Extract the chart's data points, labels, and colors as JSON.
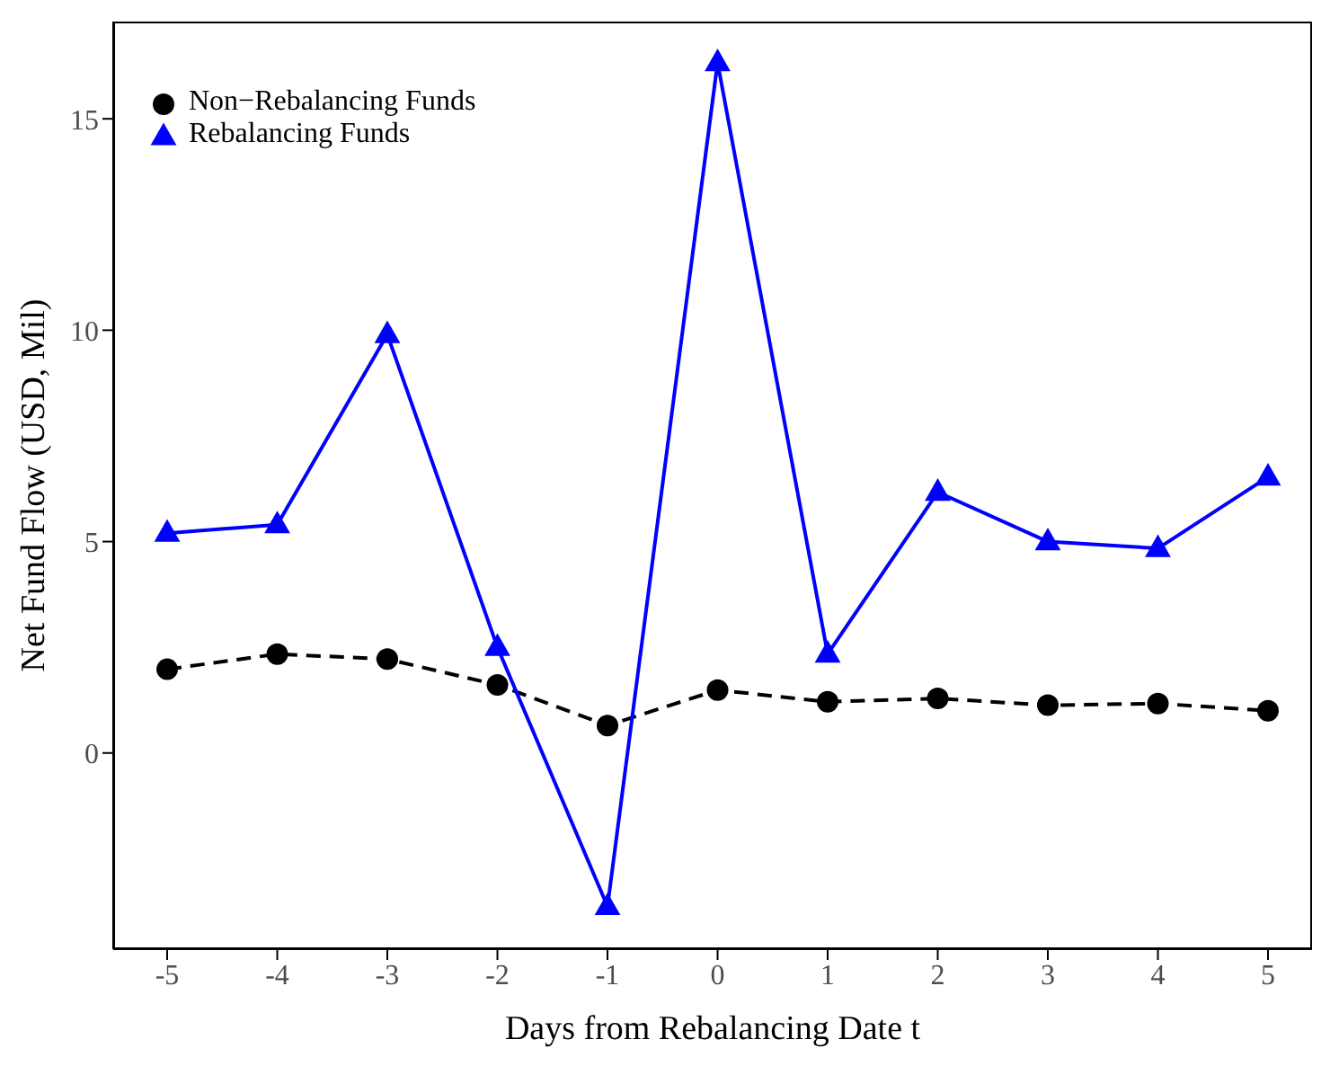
{
  "chart_data": {
    "type": "line",
    "xlabel": "Days from Rebalancing Date t",
    "ylabel": "Net Fund Flow (USD, Mil)",
    "x": [
      -5,
      -4,
      -3,
      -2,
      -1,
      0,
      1,
      2,
      3,
      4,
      5
    ],
    "series": [
      {
        "name": "Non−Rebalancing Funds",
        "color": "#000000",
        "marker": "circle",
        "line_style": "dashed",
        "values": [
          1.98,
          2.34,
          2.22,
          1.61,
          0.65,
          1.49,
          1.21,
          1.29,
          1.13,
          1.17,
          1.0
        ]
      },
      {
        "name": "Rebalancing Funds",
        "color": "#0000ff",
        "marker": "triangle",
        "line_style": "solid",
        "values": [
          5.2,
          5.4,
          9.9,
          2.5,
          -3.63,
          16.33,
          2.34,
          6.17,
          5.0,
          4.84,
          6.53
        ]
      }
    ],
    "xlim": [
      -5.49,
      5.4
    ],
    "xticks": [
      -5,
      -4,
      -3,
      -2,
      -1,
      0,
      1,
      2,
      3,
      4,
      5
    ],
    "ylim": [
      -4.64,
      17.3
    ],
    "yticks": [
      0,
      5,
      10,
      15
    ],
    "grid": false,
    "legend": "top left"
  }
}
